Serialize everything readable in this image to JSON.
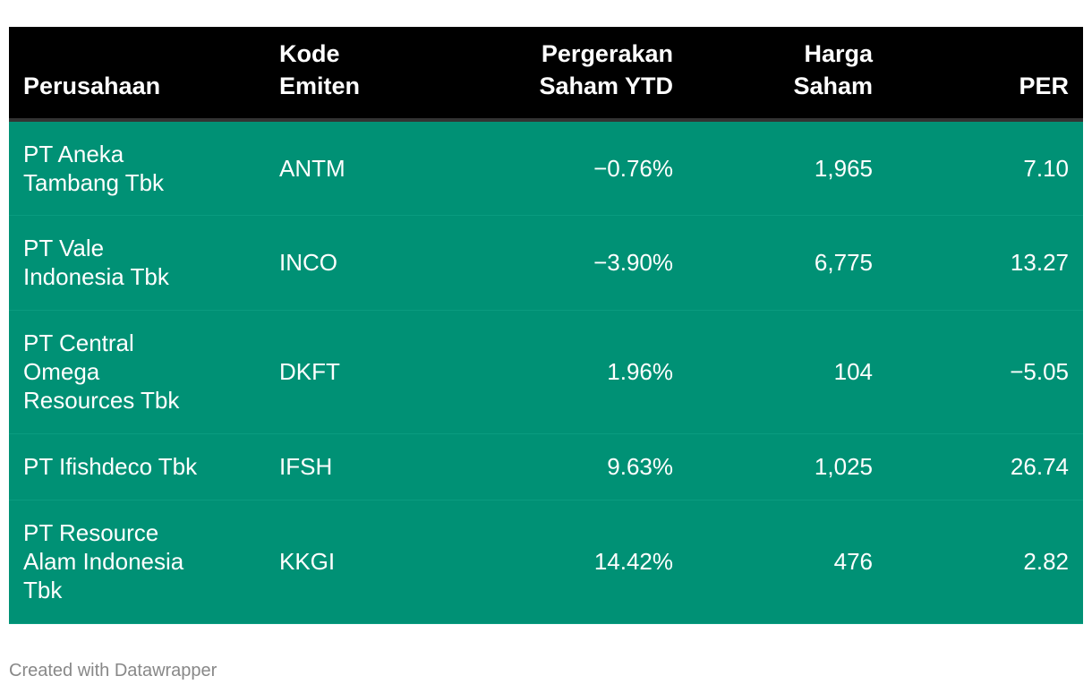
{
  "table": {
    "headers": [
      {
        "line1": "Perusahaan",
        "line2": ""
      },
      {
        "line1": "Kode",
        "line2": "Emiten"
      },
      {
        "line1": "Pergerakan",
        "line2": "Saham YTD"
      },
      {
        "line1": "Harga",
        "line2": "Saham"
      },
      {
        "line1": "PER",
        "line2": ""
      }
    ],
    "rows": [
      {
        "company": [
          "PT Aneka",
          "Tambang Tbk"
        ],
        "code": "ANTM",
        "ytd": "−0.76%",
        "price": "1,965",
        "per": "7.10"
      },
      {
        "company": [
          "PT Vale",
          "Indonesia Tbk"
        ],
        "code": "INCO",
        "ytd": "−3.90%",
        "price": "6,775",
        "per": "13.27"
      },
      {
        "company": [
          "PT Central",
          "Omega",
          "Resources Tbk"
        ],
        "code": "DKFT",
        "ytd": "1.96%",
        "price": "104",
        "per": "−5.05"
      },
      {
        "company": [
          "PT Ifishdeco Tbk"
        ],
        "code": "IFSH",
        "ytd": "9.63%",
        "price": "1,025",
        "per": "26.74"
      },
      {
        "company": [
          "PT Resource",
          "Alam Indonesia",
          "Tbk"
        ],
        "code": "KKGI",
        "ytd": "14.42%",
        "price": "476",
        "per": "2.82"
      }
    ]
  },
  "footer": {
    "credit": "Created with Datawrapper"
  },
  "colors": {
    "header_bg": "#000000",
    "row_bg": "#009175",
    "text": "#ffffff",
    "footer_text": "#888888"
  }
}
